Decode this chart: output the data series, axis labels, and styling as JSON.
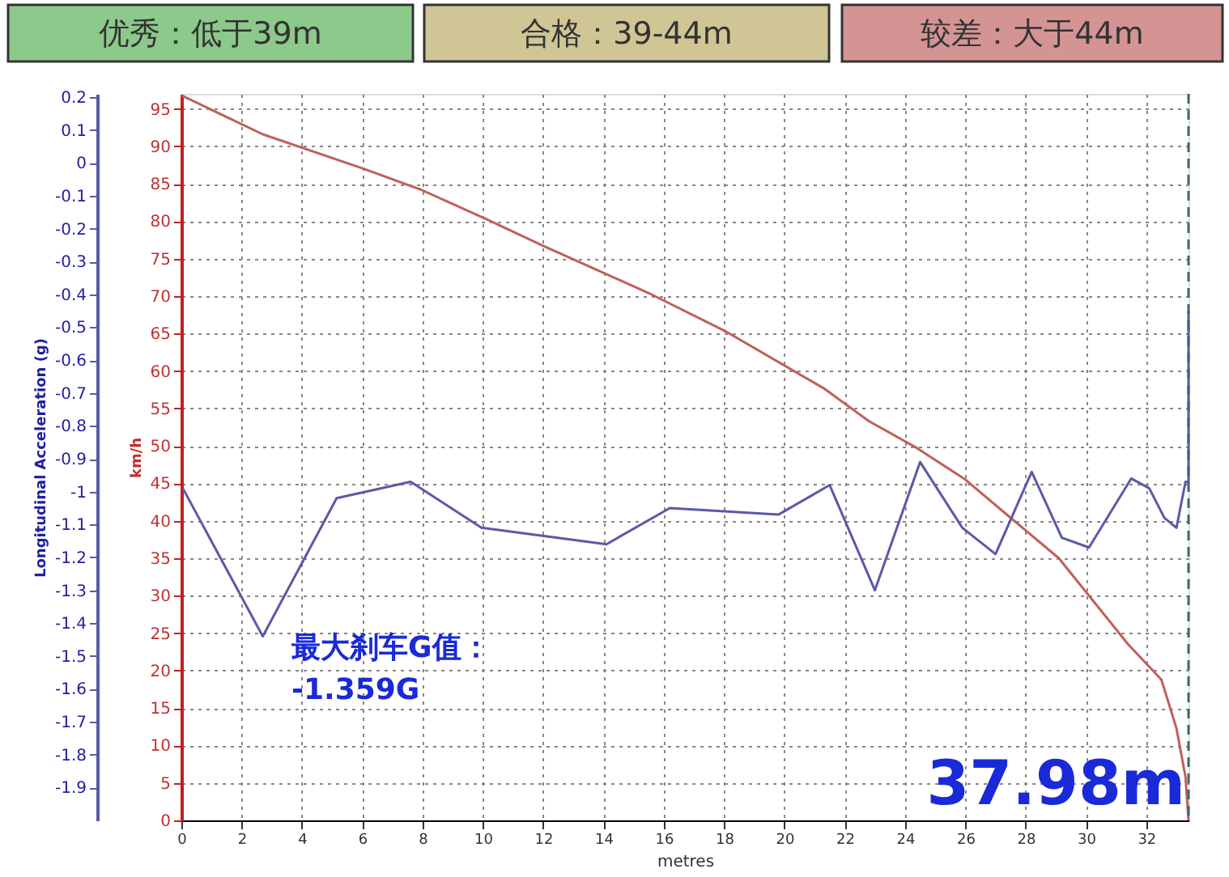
{
  "chart_data": {
    "type": "line",
    "xlabel": "metres",
    "ylabel": "km/h",
    "y2label": "Longitudinal Acceleration (g)",
    "annotations": [
      "优秀：低于39m",
      "合格：39-44m",
      "较差：大于44m",
      "最大刹车G值：\n-1.359G",
      "37.98m"
    ],
    "xlim": [
      0,
      33.4
    ],
    "xticks": [
      0,
      2,
      4,
      6,
      8,
      10,
      12,
      14,
      16,
      18,
      20,
      22,
      24,
      26,
      28,
      30,
      32
    ],
    "ylim": [
      0,
      97
    ],
    "yticks": [
      0,
      5,
      10,
      15,
      20,
      25,
      30,
      35,
      40,
      45,
      50,
      55,
      60,
      65,
      70,
      75,
      80,
      85,
      90,
      95
    ],
    "y2lim": [
      -2.0,
      0.21
    ],
    "y2ticks": [
      0.2,
      0.1,
      0,
      -0.1,
      -0.2,
      -0.3,
      -0.4,
      -0.5,
      -0.6,
      -0.7,
      -0.8,
      -0.9,
      -1,
      -1.1,
      -1.2,
      -1.3,
      -1.4,
      -1.5,
      -1.6,
      -1.7,
      -1.8,
      -1.9
    ],
    "grid": true,
    "ref_lines": [
      {
        "axis": "x",
        "value": 33.4,
        "color": "#406868",
        "line_style": "dashed"
      }
    ],
    "series": [
      {
        "color": "#c0605a",
        "x": [
          0,
          2.7,
          6.05,
          7.95,
          10.1,
          12.0,
          15.5,
          18.0,
          21.3,
          22.8,
          24.4,
          26.0,
          27.5,
          29.1,
          31.4,
          32.5,
          33.0,
          33.3,
          33.4
        ],
        "values": [
          96.8,
          91.6,
          87.0,
          84.2,
          80.3,
          76.7,
          70.4,
          65.4,
          57.7,
          53.3,
          49.7,
          45.5,
          40.4,
          35.0,
          23.5,
          18.8,
          12.3,
          5.8,
          0
        ]
      },
      {
        "color": "#5a5aa8",
        "axis": "y2",
        "x": [
          0.05,
          2.7,
          5.15,
          7.6,
          9.95,
          14.1,
          16.2,
          19.8,
          21.5,
          23.0,
          24.5,
          25.9,
          27.0,
          28.2,
          29.2,
          30.1,
          31.5,
          32.1,
          32.6,
          33.0,
          33.3,
          33.4,
          33.4
        ],
        "values": [
          -0.99,
          -1.44,
          -1.02,
          -0.97,
          -1.11,
          -1.16,
          -1.05,
          -1.07,
          -0.98,
          -1.3,
          -0.91,
          -1.11,
          -1.19,
          -0.94,
          -1.14,
          -1.17,
          -0.96,
          -0.99,
          -1.08,
          -1.11,
          -0.97,
          -0.97,
          -0.45
        ]
      }
    ]
  }
}
